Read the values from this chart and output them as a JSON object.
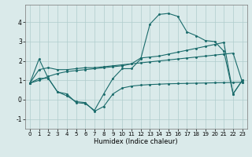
{
  "xlabel": "Humidex (Indice chaleur)",
  "xlim": [
    -0.5,
    23.5
  ],
  "ylim": [
    -1.5,
    4.9
  ],
  "yticks": [
    -1,
    0,
    1,
    2,
    3,
    4
  ],
  "xticks": [
    0,
    1,
    2,
    3,
    4,
    5,
    6,
    7,
    8,
    9,
    10,
    11,
    12,
    13,
    14,
    15,
    16,
    17,
    18,
    19,
    20,
    21,
    22,
    23
  ],
  "bg_color": "#daeaea",
  "line_color": "#1a6b6b",
  "grid_color": "#b0cccc",
  "lines": [
    [
      0.85,
      2.1,
      1.1,
      0.4,
      0.2,
      -0.1,
      -0.15,
      -0.6,
      -0.35,
      0.3,
      0.6,
      0.7,
      0.75,
      0.78,
      0.8,
      0.82,
      0.83,
      0.84,
      0.85,
      0.86,
      0.87,
      0.88,
      0.89,
      0.9
    ],
    [
      0.85,
      1.1,
      1.1,
      0.4,
      0.3,
      -0.15,
      -0.2,
      -0.55,
      0.3,
      1.1,
      1.6,
      1.6,
      2.1,
      3.9,
      4.4,
      4.45,
      4.3,
      3.5,
      3.3,
      3.05,
      3.0,
      2.5,
      0.3,
      1.0
    ],
    [
      0.85,
      1.55,
      1.65,
      1.55,
      1.55,
      1.6,
      1.65,
      1.65,
      1.7,
      1.75,
      1.8,
      1.85,
      1.9,
      1.95,
      2.0,
      2.05,
      2.1,
      2.15,
      2.2,
      2.25,
      2.3,
      2.35,
      2.4,
      0.9
    ],
    [
      0.85,
      1.0,
      1.2,
      1.35,
      1.45,
      1.5,
      1.55,
      1.6,
      1.65,
      1.7,
      1.75,
      1.85,
      2.15,
      2.2,
      2.25,
      2.35,
      2.45,
      2.55,
      2.65,
      2.75,
      2.85,
      2.95,
      0.3,
      1.0
    ]
  ]
}
